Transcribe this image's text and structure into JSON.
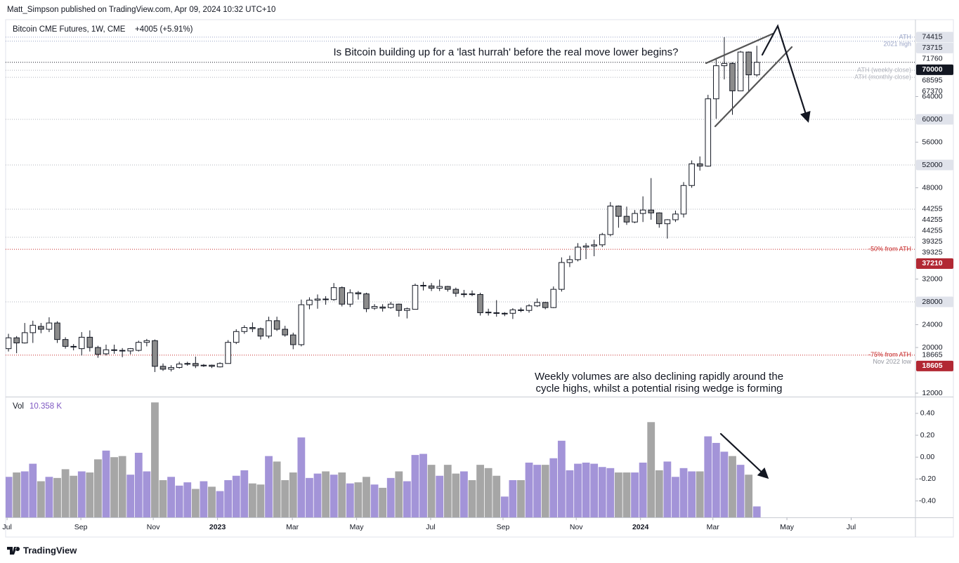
{
  "page": {
    "byline": "Matt_Simpson published on TradingView.com, Apr 09, 2024 10:32 UTC+10",
    "footer": "TradingView"
  },
  "chart_data": [
    {
      "type": "candlestick",
      "title": "Bitcoin CME Futures, 1W, CME",
      "subtitle": "+4005 (+5.91%)",
      "annotations": [
        "Is Bitcoin building up for a 'last hurrah' before the real move lower begins?",
        "Weekly volumes are also declining rapidly around the",
        "cycle highs, whilst a potential rising wedge is forming"
      ],
      "colors": {
        "up": "#ffffff",
        "down": "#8c8c8c",
        "outline": "#131722"
      },
      "open": [
        19800,
        21700,
        20800,
        22600,
        23700,
        23200,
        24300,
        21400,
        20200,
        19800,
        21800,
        20000,
        18900,
        19600,
        19500,
        19400,
        19500,
        20900,
        21200,
        16700,
        16200,
        16500,
        17100,
        17200,
        16800,
        16900,
        16600,
        17200,
        20900,
        22800,
        23500,
        23300,
        22000,
        24700,
        23200,
        22200,
        20500,
        27500,
        28300,
        28500,
        28400,
        30500,
        27600,
        29600,
        29400,
        26900,
        27100,
        27000,
        27600,
        26500,
        26700,
        30900,
        30800,
        30400,
        30700,
        30200,
        29400,
        29400,
        29300,
        26200,
        26100,
        26000,
        26000,
        26600,
        26500,
        27300,
        27900,
        27000,
        30200,
        34900,
        35400,
        37600,
        37800,
        38000,
        39800,
        44800,
        43000,
        42000,
        43500,
        44100,
        43600,
        41700,
        42400,
        43400,
        48400,
        52200,
        51800,
        63600,
        69400,
        69800,
        65000,
        71800,
        67800
      ],
      "high": [
        22400,
        22000,
        24300,
        24700,
        24300,
        25300,
        24600,
        21800,
        20600,
        22700,
        23000,
        20300,
        20500,
        20500,
        19900,
        19900,
        21200,
        21500,
        21400,
        17200,
        16900,
        17500,
        17500,
        18400,
        17100,
        17000,
        17400,
        21300,
        23200,
        23900,
        24400,
        23500,
        25400,
        25400,
        23800,
        22600,
        28400,
        28800,
        29300,
        29000,
        31300,
        30700,
        30200,
        29900,
        29600,
        27600,
        27600,
        28000,
        27700,
        27000,
        31200,
        31500,
        31300,
        31900,
        30800,
        30500,
        30100,
        30000,
        29600,
        26800,
        28300,
        26200,
        26900,
        27000,
        27600,
        28600,
        28000,
        30700,
        35800,
        36100,
        38300,
        38300,
        38900,
        40100,
        45500,
        44900,
        44700,
        44100,
        46500,
        49700,
        43700,
        42500,
        44000,
        49000,
        52800,
        53500,
        64300,
        70500,
        74415,
        70000,
        72000,
        71900,
        72900
      ],
      "low": [
        19300,
        19000,
        20700,
        20800,
        22500,
        22700,
        20800,
        19800,
        19500,
        18600,
        19300,
        18200,
        18600,
        18900,
        18300,
        18800,
        19300,
        20200,
        15700,
        15900,
        15800,
        16300,
        16800,
        16400,
        16600,
        16400,
        16500,
        17200,
        20600,
        22400,
        22700,
        21400,
        21600,
        22900,
        21900,
        19700,
        20200,
        26700,
        26800,
        27500,
        28200,
        27200,
        27100,
        28400,
        26200,
        26600,
        26300,
        26800,
        25400,
        25100,
        26700,
        30000,
        29900,
        29900,
        29800,
        28900,
        28800,
        29000,
        25600,
        25600,
        25400,
        25500,
        25000,
        26200,
        26100,
        27100,
        26700,
        26900,
        29800,
        34100,
        35100,
        35500,
        36000,
        37600,
        39500,
        41000,
        41500,
        41800,
        42000,
        42400,
        41000,
        39100,
        42000,
        42800,
        48000,
        51000,
        51700,
        60100,
        67000,
        60800,
        65000,
        64700,
        67500
      ],
      "close": [
        21700,
        20800,
        22600,
        23900,
        23200,
        24300,
        21400,
        20200,
        20100,
        21800,
        20000,
        18800,
        19600,
        19500,
        19400,
        19800,
        20900,
        21200,
        16700,
        16200,
        16500,
        17100,
        17200,
        16800,
        16900,
        16700,
        17200,
        20900,
        22800,
        23500,
        23300,
        22000,
        24700,
        23200,
        22200,
        20500,
        27500,
        28300,
        28500,
        28400,
        30500,
        27600,
        29600,
        29400,
        26800,
        27200,
        26900,
        27600,
        26500,
        26800,
        30900,
        30900,
        30400,
        30700,
        30200,
        29500,
        29400,
        29300,
        26100,
        26100,
        26000,
        26000,
        26600,
        26500,
        27300,
        27900,
        27000,
        30200,
        34900,
        35400,
        37600,
        37800,
        38000,
        39800,
        44800,
        43000,
        42000,
        43500,
        44100,
        43600,
        41700,
        42400,
        43400,
        48400,
        52200,
        51800,
        63600,
        69400,
        69800,
        65000,
        71800,
        67800,
        70000
      ],
      "xlim": [
        -0.35,
        111.5
      ],
      "xticks": [
        {
          "value": -0.17,
          "label": "Jul"
        },
        {
          "value": 8.9,
          "label": "Sep"
        },
        {
          "value": 17.8,
          "label": "Nov"
        },
        {
          "value": 25.7,
          "label": "2023"
        },
        {
          "value": 34.9,
          "label": "Mar"
        },
        {
          "value": 42.8,
          "label": "May"
        },
        {
          "value": 51.9,
          "label": "Jul"
        },
        {
          "value": 60.8,
          "label": "Sep"
        },
        {
          "value": 69.8,
          "label": "Nov"
        },
        {
          "value": 77.7,
          "label": "2024"
        },
        {
          "value": 86.6,
          "label": "Mar"
        },
        {
          "value": 95.7,
          "label": "May"
        },
        {
          "value": 103.6,
          "label": "Jul"
        }
      ],
      "ylim": [
        11400,
        77200
      ],
      "yticks": [
        12000,
        20000,
        24000,
        32000,
        48000,
        56000,
        64000
      ],
      "grid": false,
      "levels": [
        {
          "value": 74415,
          "note": "ATH",
          "color": "#9aa5c7",
          "label_bg": "#e0e3eb"
        },
        {
          "value": 73715,
          "note": "2021 high",
          "color": "#9aa5c7",
          "label_bg": "#e0e3eb"
        },
        {
          "value": 71760
        },
        {
          "value": 70000,
          "color": "#131722",
          "label_bg": "#131722",
          "label_color": "#ffffff"
        },
        {
          "value": 68595,
          "note": "ATH (weekly close)",
          "color": "#b2b5be"
        },
        {
          "value": 67370,
          "note": "ATH (monthly close)",
          "color": "#b2b5be"
        },
        {
          "value": 60000,
          "color": "#b2b5be",
          "label_bg": "#e0e3eb"
        },
        {
          "value": 52000,
          "color": "#b2b5be",
          "label_bg": "#e0e3eb"
        },
        {
          "value": 44255,
          "color": "#b2b5be"
        },
        {
          "value": 44255
        },
        {
          "value": 44255
        },
        {
          "value": 39325,
          "color": "#b2b5be"
        },
        {
          "value": 39325
        },
        {
          "value": 37210,
          "note": "-50% from ATH",
          "color": "#c62828",
          "label_bg": "#b22833",
          "label_color": "#ffffff"
        },
        {
          "value": 28000,
          "color": "#b2b5be",
          "label_bg": "#e0e3eb"
        },
        {
          "value": 18665,
          "note": "-75% from ATH",
          "color": "#c62828"
        },
        {
          "value": 18605,
          "note": "Nov 2022 low",
          "label_bg": "#b22833",
          "label_color": "#ffffff"
        }
      ]
    },
    {
      "type": "bar",
      "name": "Vol",
      "legend_value": "10.358 K",
      "colors": {
        "up": "#a394d8",
        "down": "#a6a6a6",
        "legend_value": "#7e57c2"
      },
      "values": [
        -0.18,
        -0.14,
        -0.13,
        -0.06,
        -0.22,
        -0.18,
        -0.19,
        -0.11,
        -0.17,
        -0.13,
        -0.14,
        -0.02,
        0.06,
        0.0,
        0.01,
        -0.16,
        0.04,
        -0.13,
        0.5,
        -0.21,
        -0.18,
        -0.26,
        -0.23,
        -0.29,
        -0.22,
        -0.27,
        -0.31,
        -0.21,
        -0.17,
        -0.12,
        -0.24,
        -0.25,
        0.01,
        -0.04,
        -0.21,
        -0.14,
        0.18,
        -0.19,
        -0.15,
        -0.13,
        -0.16,
        -0.14,
        -0.24,
        -0.23,
        -0.18,
        -0.25,
        -0.28,
        -0.19,
        -0.13,
        -0.22,
        0.02,
        0.03,
        -0.07,
        -0.17,
        -0.07,
        -0.15,
        -0.13,
        -0.21,
        -0.07,
        -0.1,
        -0.17,
        -0.36,
        -0.21,
        -0.21,
        -0.05,
        -0.07,
        -0.07,
        -0.01,
        0.15,
        -0.12,
        -0.06,
        -0.05,
        -0.06,
        -0.09,
        -0.1,
        -0.14,
        -0.14,
        -0.14,
        -0.05,
        0.32,
        -0.12,
        -0.04,
        -0.18,
        -0.1,
        -0.13,
        -0.13,
        0.19,
        0.13,
        0.05,
        0.01,
        -0.07,
        -0.16,
        -0.45
      ],
      "ylim": [
        -0.55,
        0.54
      ],
      "yticks": [
        {
          "value": 0.4,
          "label": "0.40"
        },
        {
          "value": 0.2,
          "label": "0.20"
        },
        {
          "value": 0,
          "label": "0.00"
        },
        {
          "value": -0.2,
          "label": "-0.20"
        },
        {
          "value": -0.4,
          "label": "-0.40"
        }
      ]
    }
  ]
}
